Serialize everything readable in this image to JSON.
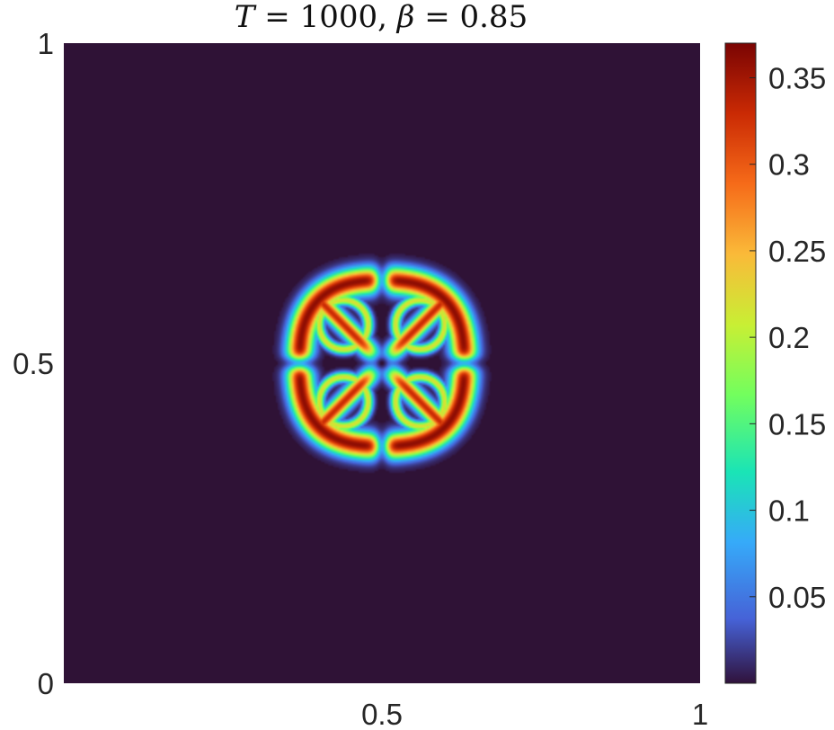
{
  "chart_data": {
    "type": "heatmap",
    "title": "T = 1000,  β = 0.85",
    "title_parts": {
      "lead": "T",
      "rest": " = 1000,  ",
      "beta": "β",
      "beta_rest": " = 0.85"
    },
    "xlabel": "",
    "ylabel": "",
    "xlim": [
      0,
      1
    ],
    "ylim": [
      0,
      1
    ],
    "x_ticks": [
      {
        "value": 0.5,
        "label": "0.5"
      },
      {
        "value": 1,
        "label": "1"
      }
    ],
    "y_ticks": [
      {
        "value": 0,
        "label": "0"
      },
      {
        "value": 0.5,
        "label": "0.5"
      },
      {
        "value": 1,
        "label": "1"
      }
    ],
    "colorbar": {
      "colormap": "turbo",
      "clim": [
        0,
        0.37
      ],
      "ticks": [
        {
          "value": 0.05,
          "label": "0.05"
        },
        {
          "value": 0.1,
          "label": "0.1"
        },
        {
          "value": 0.15,
          "label": "0.15"
        },
        {
          "value": 0.2,
          "label": "0.2"
        },
        {
          "value": 0.25,
          "label": "0.25"
        },
        {
          "value": 0.3,
          "label": "0.3"
        },
        {
          "value": 0.35,
          "label": "0.35"
        }
      ]
    },
    "field": {
      "description_values": "solution field on unit square; background value 0; four-petal cross-shaped pattern centred at (0.5, 0.5)",
      "center": [
        0.5,
        0.5
      ],
      "ring_radius": 0.135,
      "ring_width": 0.02,
      "ring_peak": 0.36,
      "cross_peak": 0.33,
      "gap_half_width": 0.012,
      "background": 0.0
    },
    "colors": {
      "background_field": "#2f1236",
      "axis": "#262626",
      "colorbar_stops": [
        "#30123b",
        "#4662d7",
        "#36aaf9",
        "#1ae4b6",
        "#72fe5e",
        "#c8ef34",
        "#faba39",
        "#f66b19",
        "#ca2a04",
        "#7a0403"
      ]
    }
  }
}
